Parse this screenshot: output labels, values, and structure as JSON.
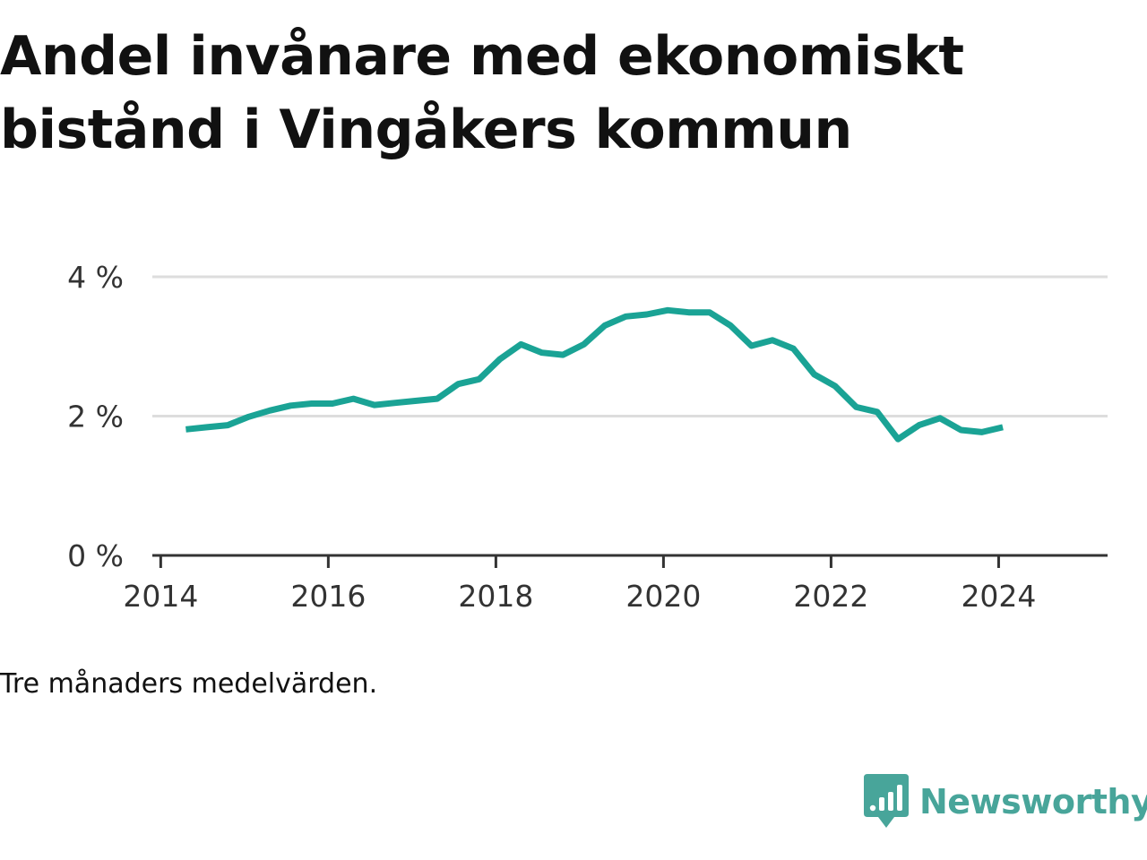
{
  "title": "Andel invånare med ekonomiskt bistånd i Vingåkers kommun",
  "caption": "Tre månaders medelvärden.",
  "brand": {
    "name": "Newsworthy",
    "icon": "newsworthy-logo-icon",
    "color": "#48a59a"
  },
  "chart_data": {
    "type": "line",
    "title": "Andel invånare med ekonomiskt bistånd i Vingåkers kommun",
    "xlabel": "",
    "ylabel": "",
    "xlim": [
      2013.9,
      2025.3
    ],
    "ylim": [
      0,
      4
    ],
    "grid": true,
    "line_color": "#1aa395",
    "y_ticks": [
      {
        "value": 0,
        "label": "0 %"
      },
      {
        "value": 2,
        "label": "2 %"
      },
      {
        "value": 4,
        "label": "4 %"
      }
    ],
    "x_ticks": [
      {
        "value": 2014,
        "label": "2014"
      },
      {
        "value": 2016,
        "label": "2016"
      },
      {
        "value": 2018,
        "label": "2018"
      },
      {
        "value": 2020,
        "label": "2020"
      },
      {
        "value": 2022,
        "label": "2022"
      },
      {
        "value": 2024,
        "label": "2024"
      }
    ],
    "series": [
      {
        "x": [
          2014.3,
          2014.55,
          2014.8,
          2015.05,
          2015.3,
          2015.55,
          2015.8,
          2016.05,
          2016.3,
          2016.55,
          2016.8,
          2017.05,
          2017.3,
          2017.55,
          2017.8,
          2018.05,
          2018.3,
          2018.55,
          2018.8,
          2019.05,
          2019.3,
          2019.55,
          2019.8,
          2020.05,
          2020.3,
          2020.55,
          2020.8,
          2021.05,
          2021.3,
          2021.55,
          2021.8,
          2022.05,
          2022.3,
          2022.55,
          2022.8,
          2023.05,
          2023.3,
          2023.55,
          2023.8,
          2024.05
        ],
        "y": [
          1.81,
          1.84,
          1.87,
          1.99,
          2.08,
          2.15,
          2.18,
          2.18,
          2.25,
          2.16,
          2.19,
          2.22,
          2.25,
          2.46,
          2.53,
          2.82,
          3.03,
          2.91,
          2.88,
          3.03,
          3.3,
          3.43,
          3.46,
          3.52,
          3.49,
          3.49,
          3.3,
          3.01,
          3.09,
          2.97,
          2.6,
          2.43,
          2.13,
          2.06,
          1.67,
          1.87,
          1.97,
          1.8,
          1.77,
          1.84
        ]
      }
    ]
  }
}
